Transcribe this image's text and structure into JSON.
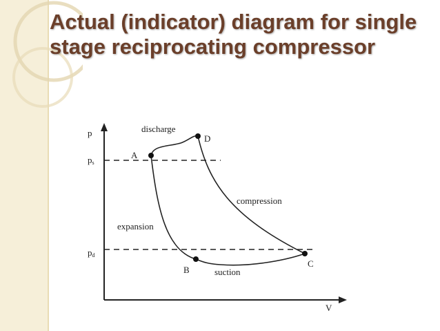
{
  "slide": {
    "title": "Actual  (indicator) diagram for single stage reciprocating compressor"
  },
  "diagram": {
    "axis_y_label": "p",
    "axis_x_label": "V",
    "ps_label": "p",
    "ps_sub": "s",
    "pd_label": "p",
    "pd_sub": "d",
    "points": {
      "A": "A",
      "B": "B",
      "C": "C",
      "D": "D"
    },
    "process_labels": {
      "discharge": "discharge",
      "compression": "compression",
      "expansion": "expansion",
      "suction": "suction"
    }
  },
  "colors": {
    "band": "#f6efd9",
    "title": "#6b3f2a",
    "ink": "#222222"
  }
}
